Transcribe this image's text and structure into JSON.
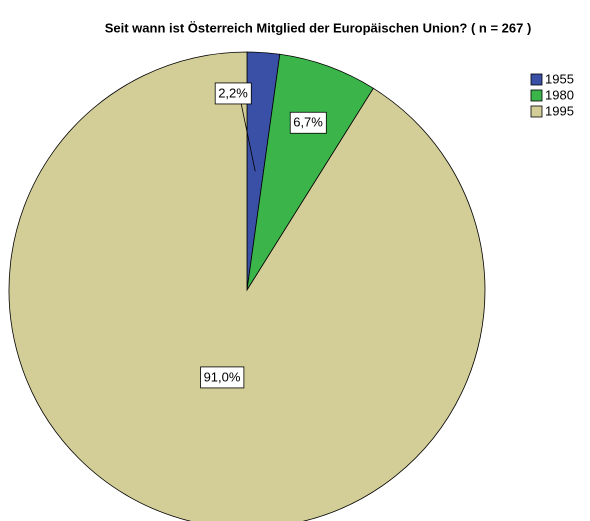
{
  "chart_data": {
    "type": "pie",
    "title": "Seit wann ist Österreich Mitglied der Europäischen Union? ( n = 267 )",
    "categories": [
      "1955",
      "1980",
      "1995"
    ],
    "values": [
      2.2,
      6.7,
      91.0
    ],
    "value_labels": [
      "2,2%",
      "6,7%",
      "91,0%"
    ],
    "colors": [
      "#3a4fa6",
      "#3bb54a",
      "#d3cd97"
    ],
    "legend": "top-right"
  }
}
